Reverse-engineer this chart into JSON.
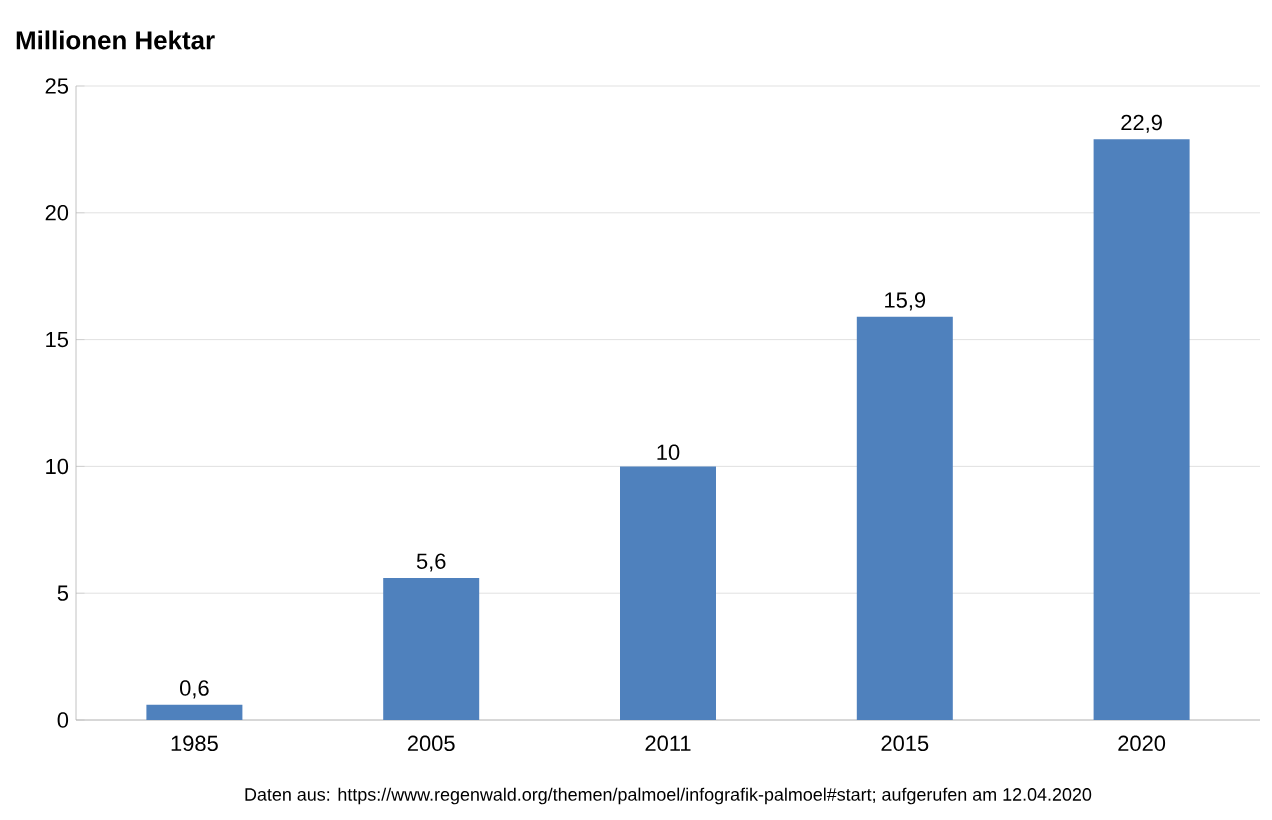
{
  "chart_data": {
    "type": "bar",
    "ylabel": "Millionen Hektar",
    "categories": [
      "1985",
      "2005",
      "2011",
      "2015",
      "2020"
    ],
    "values": [
      0.6,
      5.6,
      10,
      15.9,
      22.9
    ],
    "value_labels": [
      "0,6",
      "5,6",
      "10",
      "15,9",
      "22,9"
    ],
    "color": "#4f81bd",
    "ylim": [
      0,
      25
    ],
    "yticks": [
      0,
      5,
      10,
      15,
      20,
      25
    ],
    "grid": "y",
    "annotations": [
      "Daten aus: https://www.regenwald.org/themen/palmoel/infografik-palmoel#start; aufgerufen am 12.04.2020"
    ]
  }
}
